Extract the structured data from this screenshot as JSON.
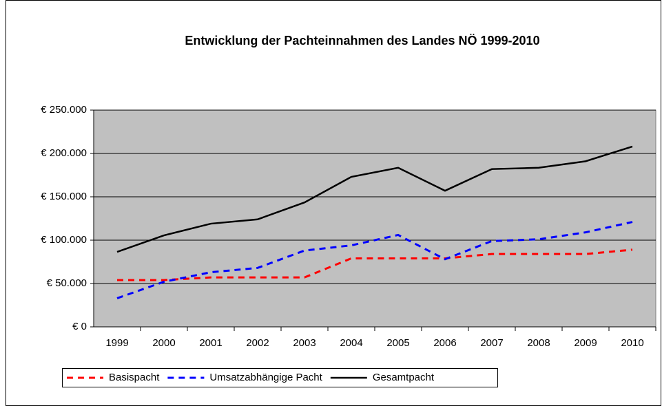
{
  "chart_data": {
    "type": "line",
    "title": "Entwicklung der Pachteinnahmen des Landes NÖ 1999-2010",
    "categories": [
      "1999",
      "2000",
      "2001",
      "2002",
      "2003",
      "2004",
      "2005",
      "2006",
      "2007",
      "2008",
      "2009",
      "2010"
    ],
    "series": [
      {
        "name": "Basispacht",
        "color": "#ff0000",
        "dash": true,
        "values": [
          54000,
          54000,
          57000,
          57000,
          57000,
          79000,
          79000,
          79000,
          84000,
          84000,
          84000,
          89000
        ]
      },
      {
        "name": "Umsatzabhängige Pacht",
        "color": "#0000ff",
        "dash": true,
        "values": [
          33000,
          52000,
          63000,
          68000,
          88000,
          94000,
          106000,
          78000,
          99000,
          101000,
          109000,
          121000
        ]
      },
      {
        "name": "Gesamtpacht",
        "color": "#000000",
        "dash": false,
        "values": [
          86500,
          105500,
          119000,
          124000,
          143500,
          173000,
          183500,
          157000,
          182000,
          183500,
          191000,
          208000
        ]
      }
    ],
    "ylim": [
      0,
      250000
    ],
    "yticks": [
      {
        "value": 0,
        "label": "€ 0"
      },
      {
        "value": 50000,
        "label": "€ 50.000"
      },
      {
        "value": 100000,
        "label": "€ 100.000"
      },
      {
        "value": 150000,
        "label": "€ 150.000"
      },
      {
        "value": 200000,
        "label": "€ 200.000"
      },
      {
        "value": 250000,
        "label": "€ 250.000"
      }
    ],
    "grid": true,
    "plot_background": "#c0c0c0",
    "legend": "bottom-left"
  }
}
